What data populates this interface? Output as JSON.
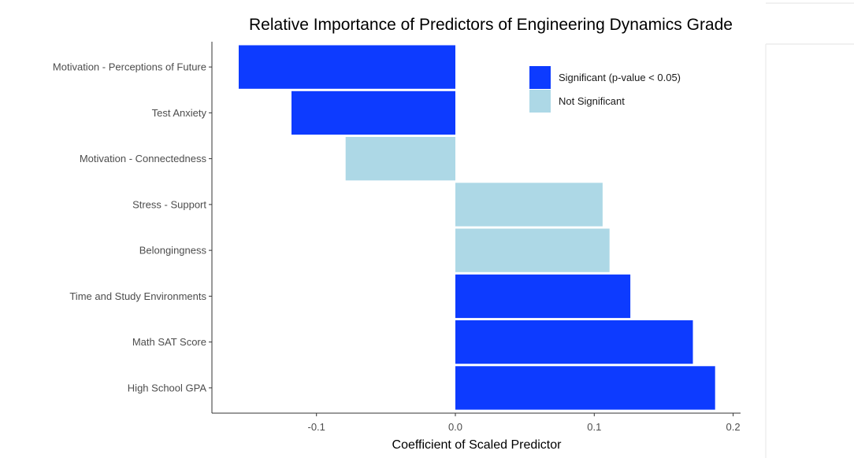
{
  "chart_data": {
    "type": "bar",
    "orientation": "horizontal",
    "title": "Relative Importance of Predictors of Engineering Dynamics Grade",
    "xlabel": "Coefficient of Scaled Predictor",
    "ylabel": "",
    "xlim": [
      -0.157,
      0.2
    ],
    "xticks": [
      -0.1,
      0.0,
      0.1,
      0.2
    ],
    "xtick_labels": [
      "-0.1",
      "0.0",
      "0.1",
      "0.2"
    ],
    "grid": false,
    "legend_position": "top-right",
    "legend": [
      {
        "label": "Significant (p-value < 0.05)",
        "color": "#0d3bff"
      },
      {
        "label": "Not Significant",
        "color": "#add8e6"
      }
    ],
    "categories": [
      "Motivation - Perceptions of Future",
      "Test Anxiety",
      "Motivation - Connectedness",
      "Stress - Support",
      "Belongingness",
      "Time and Study Environments",
      "Math SAT Score",
      "High School GPA"
    ],
    "values": [
      -0.156,
      -0.118,
      -0.079,
      0.106,
      0.111,
      0.126,
      0.171,
      0.187
    ],
    "significant": [
      true,
      true,
      false,
      false,
      false,
      true,
      true,
      true
    ]
  }
}
